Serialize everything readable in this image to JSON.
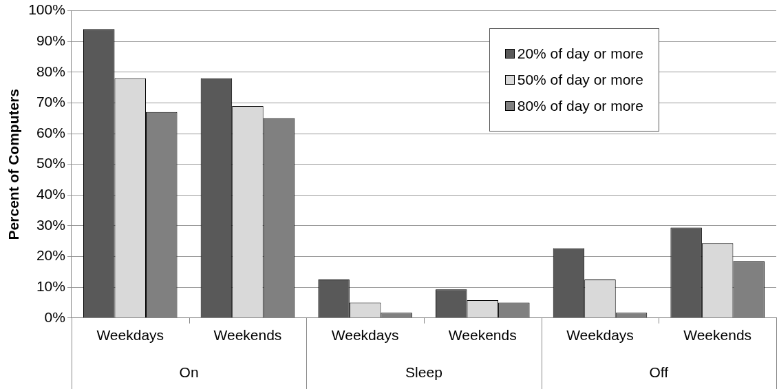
{
  "chart_data": {
    "type": "bar",
    "ylabel": "Percent of Computers",
    "categories": [
      "Weekdays",
      "Weekends",
      "Weekdays",
      "Weekends",
      "Weekdays",
      "Weekends"
    ],
    "annotations": [
      "On",
      "Sleep",
      "Off"
    ],
    "series": [
      {
        "name": "20% of day or more",
        "color": "#595959",
        "values": [
          94,
          78,
          12.5,
          9.3,
          22.7,
          29.4
        ]
      },
      {
        "name": "50% of day or more",
        "color": "#d9d9d9",
        "values": [
          78,
          69,
          5,
          5.8,
          12.5,
          24.3
        ]
      },
      {
        "name": "80% of day or more",
        "color": "#808080",
        "values": [
          67,
          65,
          1.7,
          5,
          1.7,
          18.5
        ]
      }
    ],
    "ylim": [
      0,
      100
    ],
    "yticks": [
      {
        "value": 0,
        "label": "0%"
      },
      {
        "value": 10,
        "label": "10%"
      },
      {
        "value": 20,
        "label": "20%"
      },
      {
        "value": 30,
        "label": "30%"
      },
      {
        "value": 40,
        "label": "40%"
      },
      {
        "value": 50,
        "label": "50%"
      },
      {
        "value": 60,
        "label": "60%"
      },
      {
        "value": 70,
        "label": "70%"
      },
      {
        "value": 80,
        "label": "80%"
      },
      {
        "value": 90,
        "label": "90%"
      },
      {
        "value": 100,
        "label": "100%"
      }
    ],
    "grid": "y",
    "legend": "top right"
  }
}
